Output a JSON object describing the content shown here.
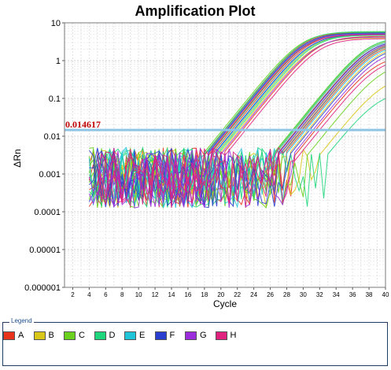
{
  "chart_data": {
    "type": "line",
    "title": "Amplification Plot",
    "xlabel": "Cycle",
    "ylabel": "ΔRn",
    "xlim": [
      1,
      40
    ],
    "ylim": [
      1e-06,
      10
    ],
    "yscale": "log",
    "x_ticks": [
      2,
      4,
      6,
      8,
      10,
      12,
      14,
      16,
      18,
      20,
      22,
      24,
      26,
      28,
      30,
      32,
      34,
      36,
      38,
      40
    ],
    "y_ticks": [
      {
        "value": 10,
        "label": "10"
      },
      {
        "value": 1,
        "label": "1"
      },
      {
        "value": 0.1,
        "label": "0.1"
      },
      {
        "value": 0.01,
        "label": "0.01"
      },
      {
        "value": 0.001,
        "label": "0.001"
      },
      {
        "value": 0.0001,
        "label": "0.0001"
      },
      {
        "value": 1e-05,
        "label": "0.00001"
      },
      {
        "value": 1e-06,
        "label": "0.000001"
      }
    ],
    "grid": true,
    "threshold": {
      "value": 0.014617,
      "label": "0.014617",
      "color": "#8ec4e4"
    },
    "series": [
      {
        "group": "A",
        "color": "#e8321c",
        "ct": 20.5,
        "plateau": 5.6
      },
      {
        "group": "A",
        "color": "#e8321c",
        "ct": 21.3,
        "plateau": 5.2
      },
      {
        "group": "A",
        "color": "#e8321c",
        "ct": 22.6,
        "plateau": 4.4
      },
      {
        "group": "A",
        "color": "#e8321c",
        "ct": 29.2,
        "plateau": 3.6
      },
      {
        "group": "A",
        "color": "#e8321c",
        "ct": 30.1,
        "plateau": 3.0
      },
      {
        "group": "A",
        "color": "#e8321c",
        "ct": 31.5,
        "plateau": 1.4
      },
      {
        "group": "B",
        "color": "#d9c81a",
        "ct": 20.9,
        "plateau": 5.0
      },
      {
        "group": "B",
        "color": "#d9c81a",
        "ct": 22.2,
        "plateau": 4.0
      },
      {
        "group": "B",
        "color": "#d9c81a",
        "ct": 28.9,
        "plateau": 4.0
      },
      {
        "group": "B",
        "color": "#d9c81a",
        "ct": 30.6,
        "plateau": 2.6
      },
      {
        "group": "B",
        "color": "#d9c81a",
        "ct": 34.5,
        "plateau": 0.4
      },
      {
        "group": "C",
        "color": "#6ad21f",
        "ct": 20.2,
        "plateau": 5.7
      },
      {
        "group": "C",
        "color": "#6ad21f",
        "ct": 21.0,
        "plateau": 5.4
      },
      {
        "group": "C",
        "color": "#6ad21f",
        "ct": 21.8,
        "plateau": 4.8
      },
      {
        "group": "C",
        "color": "#6ad21f",
        "ct": 28.7,
        "plateau": 4.2
      },
      {
        "group": "C",
        "color": "#6ad21f",
        "ct": 29.6,
        "plateau": 3.4
      },
      {
        "group": "C",
        "color": "#6ad21f",
        "ct": 33.0,
        "plateau": 0.9
      },
      {
        "group": "D",
        "color": "#1fd67c",
        "ct": 20.4,
        "plateau": 5.9
      },
      {
        "group": "D",
        "color": "#1fd67c",
        "ct": 21.1,
        "plateau": 5.5
      },
      {
        "group": "D",
        "color": "#1fd67c",
        "ct": 22.0,
        "plateau": 4.7
      },
      {
        "group": "D",
        "color": "#1fd67c",
        "ct": 28.8,
        "plateau": 4.3
      },
      {
        "group": "D",
        "color": "#1fd67c",
        "ct": 29.9,
        "plateau": 3.2
      },
      {
        "group": "D",
        "color": "#1fd67c",
        "ct": 35.5,
        "plateau": 0.16
      },
      {
        "group": "E",
        "color": "#20c4d8",
        "ct": 20.6,
        "plateau": 5.3
      },
      {
        "group": "E",
        "color": "#20c4d8",
        "ct": 21.5,
        "plateau": 4.9
      },
      {
        "group": "E",
        "color": "#20c4d8",
        "ct": 29.0,
        "plateau": 3.9
      },
      {
        "group": "E",
        "color": "#20c4d8",
        "ct": 30.3,
        "plateau": 2.8
      },
      {
        "group": "F",
        "color": "#2a3ed0",
        "ct": 20.7,
        "plateau": 5.4
      },
      {
        "group": "F",
        "color": "#2a3ed0",
        "ct": 21.6,
        "plateau": 5.0
      },
      {
        "group": "F",
        "color": "#2a3ed0",
        "ct": 29.3,
        "plateau": 3.7
      },
      {
        "group": "F",
        "color": "#2a3ed0",
        "ct": 30.8,
        "plateau": 2.4
      },
      {
        "group": "G",
        "color": "#9b2ddc",
        "ct": 20.8,
        "plateau": 5.1
      },
      {
        "group": "G",
        "color": "#9b2ddc",
        "ct": 22.4,
        "plateau": 4.2
      },
      {
        "group": "G",
        "color": "#9b2ddc",
        "ct": 29.5,
        "plateau": 3.5
      },
      {
        "group": "G",
        "color": "#9b2ddc",
        "ct": 31.2,
        "plateau": 2.0
      },
      {
        "group": "H",
        "color": "#e0217d",
        "ct": 21.0,
        "plateau": 4.9
      },
      {
        "group": "H",
        "color": "#e0217d",
        "ct": 23.0,
        "plateau": 3.8
      },
      {
        "group": "H",
        "color": "#e0217d",
        "ct": 29.8,
        "plateau": 3.3
      },
      {
        "group": "H",
        "color": "#e0217d",
        "ct": 32.0,
        "plateau": 1.2
      }
    ]
  },
  "legend": {
    "title": "Legend",
    "items": [
      {
        "label": "A",
        "color": "#e8321c"
      },
      {
        "label": "B",
        "color": "#d9c81a"
      },
      {
        "label": "C",
        "color": "#6ad21f"
      },
      {
        "label": "D",
        "color": "#1fd67c"
      },
      {
        "label": "E",
        "color": "#20c4d8"
      },
      {
        "label": "F",
        "color": "#2a3ed0"
      },
      {
        "label": "G",
        "color": "#9b2ddc"
      },
      {
        "label": "H",
        "color": "#e0217d"
      }
    ]
  }
}
